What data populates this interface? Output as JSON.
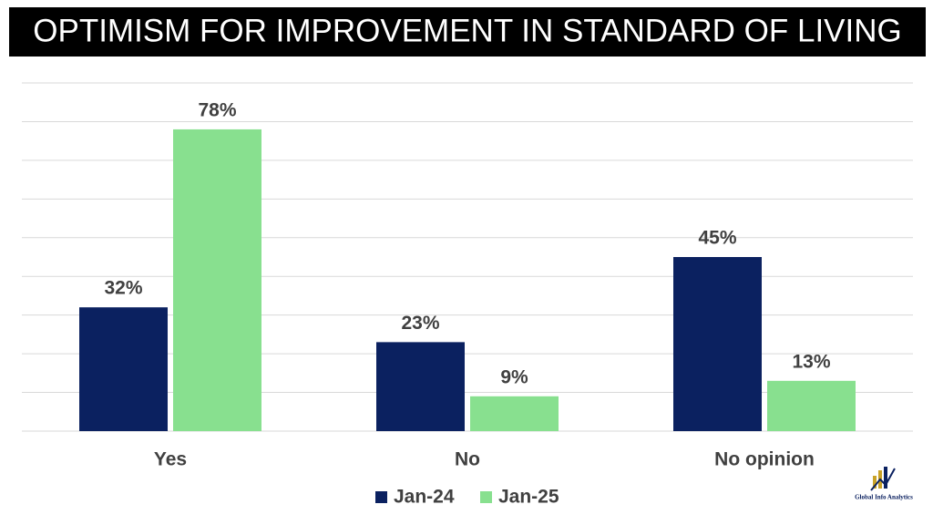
{
  "chart_data": {
    "type": "bar",
    "title": "OPTIMISM FOR IMPROVEMENT IN STANDARD OF LIVING",
    "categories": [
      "Yes",
      "No",
      "No opinion"
    ],
    "series": [
      {
        "name": "Jan-24",
        "color": "#0b2160",
        "values": [
          32,
          23,
          45
        ],
        "value_labels": [
          "32%",
          "23%",
          "45%"
        ]
      },
      {
        "name": "Jan-25",
        "color": "#88e08f",
        "values": [
          78,
          9,
          13
        ],
        "value_labels": [
          "78%",
          "9%",
          "13%"
        ]
      }
    ],
    "ylim": [
      0,
      90
    ],
    "yticks": [
      0,
      10,
      20,
      30,
      40,
      50,
      60,
      70,
      80,
      90
    ],
    "grid": true,
    "legend": "bottom"
  },
  "logo_text": "Global Info Analytics"
}
